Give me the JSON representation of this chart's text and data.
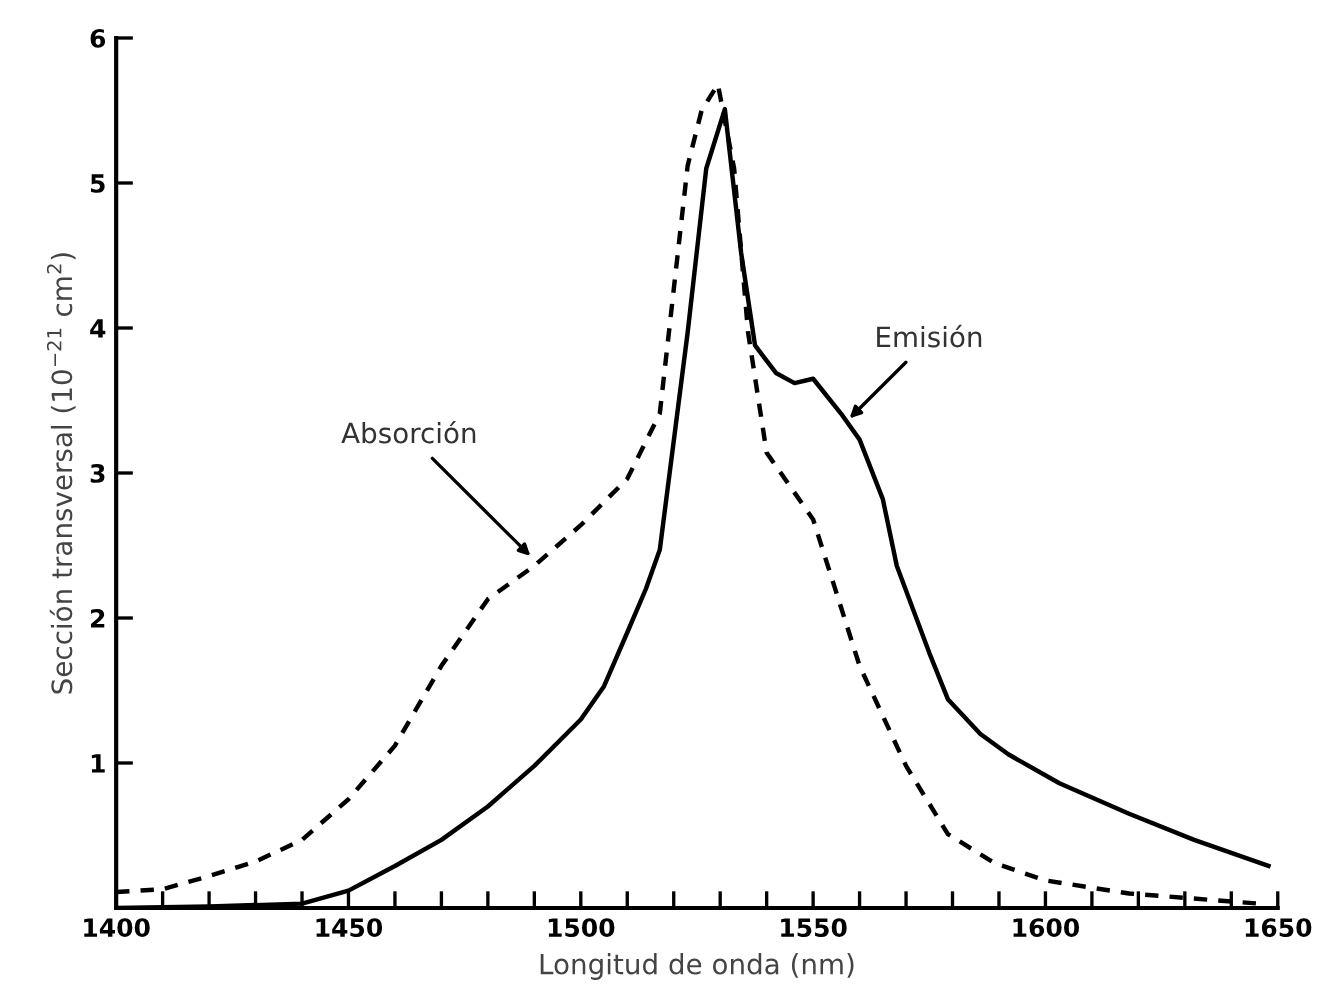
{
  "chart_data": {
    "type": "line",
    "xlabel": "Longitud de onda (nm)",
    "ylabel": "Sección transversal (10$^{−21}$ cm$^{2}$)",
    "xlim": [
      1400,
      1650
    ],
    "ylim": [
      0,
      6
    ],
    "xticks": [
      1400,
      {
        "value": 1410,
        "label": null
      },
      {
        "value": 1420,
        "label": null
      },
      {
        "value": 1430,
        "label": null
      },
      {
        "value": 1440,
        "label": null
      },
      1450,
      {
        "value": 1460,
        "label": null
      },
      {
        "value": 1470,
        "label": null
      },
      {
        "value": 1480,
        "label": null
      },
      {
        "value": 1490,
        "label": null
      },
      1500,
      {
        "value": 1510,
        "label": null
      },
      {
        "value": 1520,
        "label": null
      },
      {
        "value": 1530,
        "label": null
      },
      {
        "value": 1540,
        "label": null
      },
      1550,
      {
        "value": 1560,
        "label": null
      },
      {
        "value": 1570,
        "label": null
      },
      {
        "value": 1580,
        "label": null
      },
      {
        "value": 1590,
        "label": null
      },
      1600,
      {
        "value": 1610,
        "label": null
      },
      {
        "value": 1620,
        "label": null
      },
      {
        "value": 1630,
        "label": null
      },
      {
        "value": 1640,
        "label": null
      },
      1650
    ],
    "yticks": [
      1,
      2,
      3,
      4,
      5,
      6
    ],
    "grid": false,
    "legend": false,
    "series": [
      {
        "color": "#000000",
        "line_style": "dashed",
        "x": [
          1400,
          1410,
          1420,
          1430,
          1440,
          1450,
          1460,
          1470,
          1480,
          1490,
          1495,
          1500,
          1510,
          1517,
          1523,
          1526,
          1529.5,
          1533,
          1536,
          1540,
          1550,
          1560,
          1570,
          1579,
          1589,
          1600,
          1618,
          1646
        ],
        "values": [
          0.11,
          0.13,
          0.22,
          0.32,
          0.47,
          0.75,
          1.12,
          1.67,
          2.13,
          2.36,
          2.5,
          2.64,
          2.96,
          3.41,
          5.12,
          5.5,
          5.68,
          5.1,
          3.97,
          3.14,
          2.68,
          1.67,
          0.98,
          0.51,
          0.31,
          0.19,
          0.1,
          0.03
        ]
      },
      {
        "color": "#000000",
        "line_style": "solid",
        "x": [
          1400,
          1420,
          1440,
          1450,
          1460,
          1470,
          1480,
          1490,
          1500,
          1505,
          1510,
          1514,
          1517,
          1523,
          1527,
          1531,
          1534.5,
          1537.5,
          1542,
          1546,
          1550,
          1556,
          1560,
          1565,
          1568,
          1575,
          1579,
          1586,
          1592,
          1603,
          1618,
          1632,
          1648
        ],
        "values": [
          0,
          0.01,
          0.03,
          0.12,
          0.29,
          0.47,
          0.7,
          0.98,
          1.3,
          1.53,
          1.9,
          2.2,
          2.47,
          3.97,
          5.1,
          5.51,
          4.52,
          3.88,
          3.69,
          3.62,
          3.65,
          3.41,
          3.23,
          2.82,
          2.36,
          1.76,
          1.44,
          1.2,
          1.06,
          0.86,
          0.65,
          0.47,
          0.29
        ]
      }
    ],
    "annotations": [
      {
        "text": "Absorción",
        "x": 1490,
        "y": 2.4
      },
      {
        "text": "Emisión",
        "x": 1557,
        "y": 3.35
      }
    ]
  }
}
